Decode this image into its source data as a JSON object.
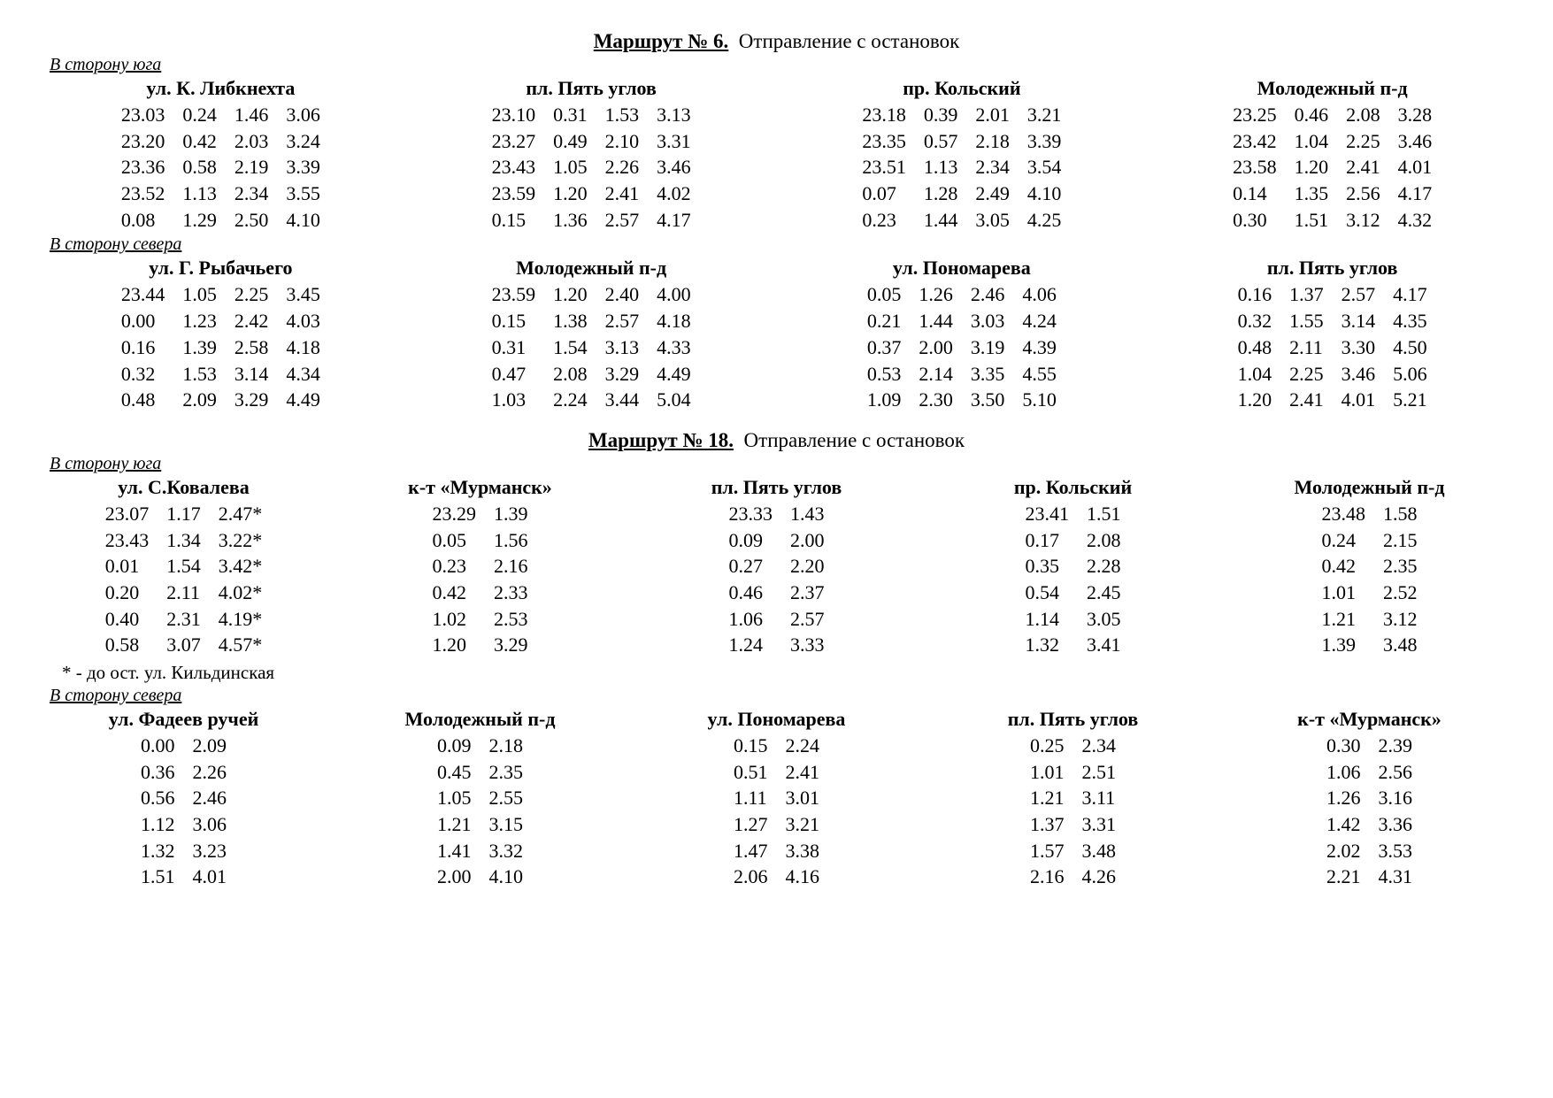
{
  "route6": {
    "title_num": "Маршрут № 6.",
    "title_rest": "Отправление с остановок",
    "south_label": "В сторону юга",
    "north_label": "В сторону севера",
    "south_stops": [
      {
        "name": "ул. К. Либкнехта",
        "rows": [
          [
            "23.03",
            "0.24",
            "1.46",
            "3.06"
          ],
          [
            "23.20",
            "0.42",
            "2.03",
            "3.24"
          ],
          [
            "23.36",
            "0.58",
            "2.19",
            "3.39"
          ],
          [
            "23.52",
            "1.13",
            "2.34",
            "3.55"
          ],
          [
            "0.08",
            "1.29",
            "2.50",
            "4.10"
          ]
        ]
      },
      {
        "name": "пл. Пять углов",
        "rows": [
          [
            "23.10",
            "0.31",
            "1.53",
            "3.13"
          ],
          [
            "23.27",
            "0.49",
            "2.10",
            "3.31"
          ],
          [
            "23.43",
            "1.05",
            "2.26",
            "3.46"
          ],
          [
            "23.59",
            "1.20",
            "2.41",
            "4.02"
          ],
          [
            "0.15",
            "1.36",
            "2.57",
            "4.17"
          ]
        ]
      },
      {
        "name": "пр. Кольский",
        "rows": [
          [
            "23.18",
            "0.39",
            "2.01",
            "3.21"
          ],
          [
            "23.35",
            "0.57",
            "2.18",
            "3.39"
          ],
          [
            "23.51",
            "1.13",
            "2.34",
            "3.54"
          ],
          [
            "0.07",
            "1.28",
            "2.49",
            "4.10"
          ],
          [
            "0.23",
            "1.44",
            "3.05",
            "4.25"
          ]
        ]
      },
      {
        "name": "Молодежный п-д",
        "rows": [
          [
            "23.25",
            "0.46",
            "2.08",
            "3.28"
          ],
          [
            "23.42",
            "1.04",
            "2.25",
            "3.46"
          ],
          [
            "23.58",
            "1.20",
            "2.41",
            "4.01"
          ],
          [
            "0.14",
            "1.35",
            "2.56",
            "4.17"
          ],
          [
            "0.30",
            "1.51",
            "3.12",
            "4.32"
          ]
        ]
      }
    ],
    "north_stops": [
      {
        "name": "ул. Г. Рыбачьего",
        "rows": [
          [
            "23.44",
            "1.05",
            "2.25",
            "3.45"
          ],
          [
            "0.00",
            "1.23",
            "2.42",
            "4.03"
          ],
          [
            "0.16",
            "1.39",
            "2.58",
            "4.18"
          ],
          [
            "0.32",
            "1.53",
            "3.14",
            "4.34"
          ],
          [
            "0.48",
            "2.09",
            "3.29",
            "4.49"
          ]
        ]
      },
      {
        "name": "Молодежный п-д",
        "rows": [
          [
            "23.59",
            "1.20",
            "2.40",
            "4.00"
          ],
          [
            "0.15",
            "1.38",
            "2.57",
            "4.18"
          ],
          [
            "0.31",
            "1.54",
            "3.13",
            "4.33"
          ],
          [
            "0.47",
            "2.08",
            "3.29",
            "4.49"
          ],
          [
            "1.03",
            "2.24",
            "3.44",
            "5.04"
          ]
        ]
      },
      {
        "name": "ул. Пономарева",
        "rows": [
          [
            "0.05",
            "1.26",
            "2.46",
            "4.06"
          ],
          [
            "0.21",
            "1.44",
            "3.03",
            "4.24"
          ],
          [
            "0.37",
            "2.00",
            "3.19",
            "4.39"
          ],
          [
            "0.53",
            "2.14",
            "3.35",
            "4.55"
          ],
          [
            "1.09",
            "2.30",
            "3.50",
            "5.10"
          ]
        ]
      },
      {
        "name": "пл. Пять углов",
        "rows": [
          [
            "0.16",
            "1.37",
            "2.57",
            "4.17"
          ],
          [
            "0.32",
            "1.55",
            "3.14",
            "4.35"
          ],
          [
            "0.48",
            "2.11",
            "3.30",
            "4.50"
          ],
          [
            "1.04",
            "2.25",
            "3.46",
            "5.06"
          ],
          [
            "1.20",
            "2.41",
            "4.01",
            "5.21"
          ]
        ]
      }
    ]
  },
  "route18": {
    "title_num": "Маршрут № 18.",
    "title_rest": "Отправление с остановок",
    "south_label": "В сторону юга",
    "north_label": "В сторону севера",
    "footnote": "* - до ост. ул. Кильдинская",
    "south_stops": [
      {
        "name": "ул. С.Ковалева",
        "rows": [
          [
            "23.07",
            "1.17",
            "2.47*"
          ],
          [
            "23.43",
            "1.34",
            "3.22*"
          ],
          [
            "0.01",
            "1.54",
            "3.42*"
          ],
          [
            "0.20",
            "2.11",
            "4.02*"
          ],
          [
            "0.40",
            "2.31",
            "4.19*"
          ],
          [
            "0.58",
            "3.07",
            "4.57*"
          ]
        ]
      },
      {
        "name": "к-т «Мурманск»",
        "rows": [
          [
            "23.29",
            "1.39"
          ],
          [
            "0.05",
            "1.56"
          ],
          [
            "0.23",
            "2.16"
          ],
          [
            "0.42",
            "2.33"
          ],
          [
            "1.02",
            "2.53"
          ],
          [
            "1.20",
            "3.29"
          ]
        ]
      },
      {
        "name": "пл. Пять углов",
        "rows": [
          [
            "23.33",
            "1.43"
          ],
          [
            "0.09",
            "2.00"
          ],
          [
            "0.27",
            "2.20"
          ],
          [
            "0.46",
            "2.37"
          ],
          [
            "1.06",
            "2.57"
          ],
          [
            "1.24",
            "3.33"
          ]
        ]
      },
      {
        "name": "пр. Кольский",
        "rows": [
          [
            "23.41",
            "1.51"
          ],
          [
            "0.17",
            "2.08"
          ],
          [
            "0.35",
            "2.28"
          ],
          [
            "0.54",
            "2.45"
          ],
          [
            "1.14",
            "3.05"
          ],
          [
            "1.32",
            "3.41"
          ]
        ]
      },
      {
        "name": "Молодежный п-д",
        "rows": [
          [
            "23.48",
            "1.58"
          ],
          [
            "0.24",
            "2.15"
          ],
          [
            "0.42",
            "2.35"
          ],
          [
            "1.01",
            "2.52"
          ],
          [
            "1.21",
            "3.12"
          ],
          [
            "1.39",
            "3.48"
          ]
        ]
      }
    ],
    "north_stops": [
      {
        "name": "ул. Фадеев ручей",
        "rows": [
          [
            "0.00",
            "2.09"
          ],
          [
            "0.36",
            "2.26"
          ],
          [
            "0.56",
            "2.46"
          ],
          [
            "1.12",
            "3.06"
          ],
          [
            "1.32",
            "3.23"
          ],
          [
            "1.51",
            "4.01"
          ]
        ]
      },
      {
        "name": "Молодежный п-д",
        "rows": [
          [
            "0.09",
            "2.18"
          ],
          [
            "0.45",
            "2.35"
          ],
          [
            "1.05",
            "2.55"
          ],
          [
            "1.21",
            "3.15"
          ],
          [
            "1.41",
            "3.32"
          ],
          [
            "2.00",
            "4.10"
          ]
        ]
      },
      {
        "name": "ул. Пономарева",
        "rows": [
          [
            "0.15",
            "2.24"
          ],
          [
            "0.51",
            "2.41"
          ],
          [
            "1.11",
            "3.01"
          ],
          [
            "1.27",
            "3.21"
          ],
          [
            "1.47",
            "3.38"
          ],
          [
            "2.06",
            "4.16"
          ]
        ]
      },
      {
        "name": "пл. Пять углов",
        "rows": [
          [
            "0.25",
            "2.34"
          ],
          [
            "1.01",
            "2.51"
          ],
          [
            "1.21",
            "3.11"
          ],
          [
            "1.37",
            "3.31"
          ],
          [
            "1.57",
            "3.48"
          ],
          [
            "2.16",
            "4.26"
          ]
        ]
      },
      {
        "name": "к-т «Мурманск»",
        "rows": [
          [
            "0.30",
            "2.39"
          ],
          [
            "1.06",
            "2.56"
          ],
          [
            "1.26",
            "3.16"
          ],
          [
            "1.42",
            "3.36"
          ],
          [
            "2.02",
            "3.53"
          ],
          [
            "2.21",
            "4.31"
          ]
        ]
      }
    ]
  }
}
